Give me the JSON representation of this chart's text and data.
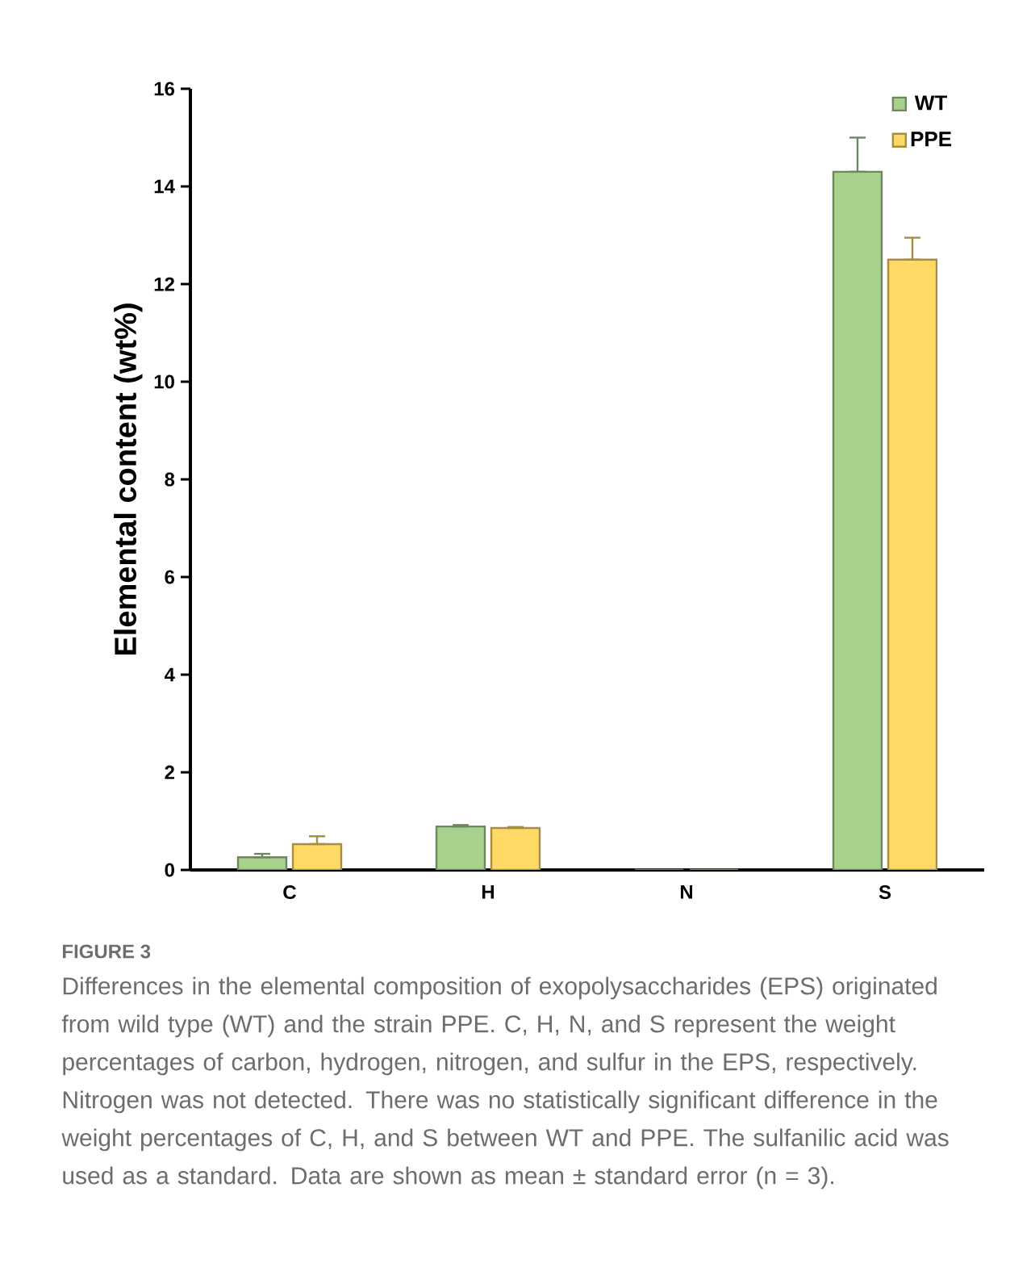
{
  "chart_data": {
    "type": "bar",
    "title": "FIGURE 3",
    "ylabel": "Elemental content (wt%)",
    "categories": [
      "C",
      "H",
      "N",
      "S"
    ],
    "series": [
      {
        "name": "WT",
        "color": "#a9d18e",
        "values": [
          0.26,
          0.89,
          0,
          14.3
        ],
        "errors": [
          [
            0.26,
            0.33
          ],
          [
            0.89,
            0.92
          ],
          null,
          [
            14.3,
            15.0
          ]
        ]
      },
      {
        "name": "PPE",
        "color": "#ffd966",
        "values": [
          0.53,
          0.86,
          0,
          12.5
        ],
        "errors": [
          [
            0.53,
            0.69
          ],
          [
            0.86,
            0.88
          ],
          null,
          [
            12.5,
            12.95
          ]
        ]
      }
    ],
    "ylim": [
      0,
      16
    ],
    "yticks": [
      0,
      2,
      4,
      6,
      8,
      10,
      12,
      14,
      16
    ],
    "grid": false,
    "legend": "top right",
    "annotations": [
      "Differences in the elemental composition of exopolysaccharides (EPS) originated from wild type (WT) and the strain PPE. C, H, N, and S represent the weight percentages of carbon, hydrogen, nitrogen, and sulfur in the EPS, respectively. Nitrogen was not detected. There was no statistically significant difference in the weight percentages of C, H, and S between WT and PPE. The sulfanilic acid was used as a standard. Data are shown as mean ± standard error (n = 3)."
    ]
  }
}
